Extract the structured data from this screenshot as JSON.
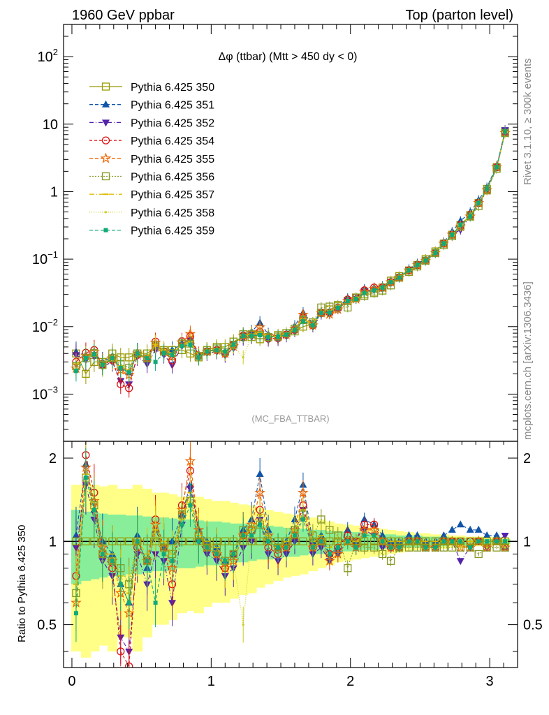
{
  "header": {
    "left": "1960 GeV ppbar",
    "right": "Top (parton level)"
  },
  "side_labels": {
    "rivet": "Rivet 3.1.10, ≥ 300k events",
    "mcplots": "mcplots.cern.ch [arXiv:1306.3436]"
  },
  "plot_title": "Δφ (ttbar) (Mtt > 450 dy < 0)",
  "watermark": "(MC_FBA_TTBAR)",
  "ratio_ylabel": "Ratio to Pythia 6.425 350",
  "legend": [
    "Pythia 6.425 350",
    "Pythia 6.425 351",
    "Pythia 6.425 352",
    "Pythia 6.425 354",
    "Pythia 6.425 355",
    "Pythia 6.425 356",
    "Pythia 6.425 357",
    "Pythia 6.425 358",
    "Pythia 6.425 359"
  ],
  "chart_data": {
    "type": "line",
    "x": [
      0.03,
      0.1,
      0.16,
      0.22,
      0.29,
      0.35,
      0.41,
      0.47,
      0.54,
      0.6,
      0.66,
      0.72,
      0.79,
      0.85,
      0.91,
      0.97,
      1.04,
      1.1,
      1.16,
      1.23,
      1.29,
      1.35,
      1.41,
      1.48,
      1.54,
      1.6,
      1.66,
      1.73,
      1.79,
      1.85,
      1.91,
      1.98,
      2.04,
      2.1,
      2.17,
      2.23,
      2.29,
      2.35,
      2.42,
      2.48,
      2.54,
      2.61,
      2.67,
      2.73,
      2.79,
      2.86,
      2.92,
      2.98,
      3.05,
      3.11
    ],
    "reference": [
      0.004,
      0.002,
      0.003,
      0.003,
      0.004,
      0.0035,
      0.0035,
      0.004,
      0.004,
      0.005,
      0.0045,
      0.0045,
      0.0045,
      0.004,
      0.0035,
      0.0045,
      0.005,
      0.005,
      0.006,
      0.007,
      0.007,
      0.0065,
      0.007,
      0.0075,
      0.008,
      0.0085,
      0.01,
      0.011,
      0.016,
      0.018,
      0.02,
      0.024,
      0.027,
      0.03,
      0.033,
      0.038,
      0.048,
      0.056,
      0.068,
      0.082,
      0.1,
      0.13,
      0.17,
      0.23,
      0.32,
      0.45,
      0.68,
      1.1,
      2.3,
      7.8
    ],
    "series": [
      {
        "name": "Pythia 6.425 350",
        "color": "#999900",
        "marker": "square-open",
        "ratio": [
          1,
          1,
          1,
          1,
          1,
          1,
          1,
          1,
          1,
          1,
          1,
          1,
          1,
          1,
          1,
          1,
          1,
          1,
          1,
          1,
          1,
          1,
          1,
          1,
          1,
          1,
          1,
          1,
          1,
          1,
          1,
          1,
          1,
          1,
          1,
          1,
          1,
          1,
          1,
          1,
          1,
          1,
          1,
          1,
          1,
          1,
          1,
          1,
          1,
          1
        ]
      },
      {
        "name": "Pythia 6.425 351",
        "color": "#1155aa",
        "marker": "triangle-up",
        "ratio": [
          1.05,
          1.9,
          1.3,
          1.0,
          0.9,
          0.7,
          0.6,
          1.05,
          0.8,
          1.1,
          0.95,
          1.0,
          1.25,
          1.6,
          1.1,
          1.0,
          0.95,
          0.85,
          0.9,
          1.1,
          1.2,
          1.75,
          1.1,
          0.95,
          1.0,
          1.2,
          1.6,
          1.0,
          1.05,
          0.9,
          0.95,
          1.1,
          1.0,
          1.2,
          1.15,
          1.05,
          1.0,
          1.0,
          1.05,
          1.05,
          1.0,
          1.0,
          1.05,
          1.1,
          1.15,
          1.1,
          1.1,
          1.05,
          1.05,
          0.95
        ]
      },
      {
        "name": "Pythia 6.425 352",
        "color": "#5522aa",
        "marker": "triangle-down",
        "ratio": [
          0.95,
          1.6,
          1.2,
          0.85,
          0.75,
          0.45,
          0.4,
          0.9,
          0.7,
          0.9,
          0.85,
          0.6,
          1.15,
          1.55,
          1.0,
          0.9,
          0.85,
          0.75,
          0.8,
          0.95,
          1.0,
          1.2,
          0.9,
          0.85,
          0.9,
          1.0,
          1.3,
          0.9,
          0.95,
          0.85,
          0.9,
          1.0,
          0.95,
          1.1,
          1.05,
          0.95,
          0.95,
          0.95,
          1.0,
          1.0,
          0.95,
          0.95,
          1.0,
          1.0,
          0.85,
          0.95,
          1.0,
          0.95,
          1.0,
          1.05
        ]
      },
      {
        "name": "Pythia 6.425 354",
        "color": "#dd1111",
        "marker": "circle-open",
        "ratio": [
          0.75,
          2.05,
          1.5,
          0.9,
          0.8,
          0.4,
          0.35,
          0.95,
          0.85,
          1.2,
          0.95,
          0.7,
          1.35,
          1.8,
          1.05,
          0.95,
          0.9,
          0.8,
          0.9,
          1.05,
          1.1,
          1.3,
          0.95,
          0.9,
          0.95,
          1.05,
          1.35,
          0.95,
          1.0,
          0.9,
          0.95,
          1.05,
          1.0,
          1.15,
          1.15,
          1.0,
          0.95,
          0.95,
          1.0,
          1.0,
          0.95,
          0.95,
          1.0,
          1.0,
          1.0,
          1.0,
          1.0,
          0.95,
          1.0,
          0.95
        ]
      },
      {
        "name": "Pythia 6.425 355",
        "color": "#ee6600",
        "marker": "star-open",
        "ratio": [
          0.6,
          1.85,
          1.4,
          0.95,
          0.85,
          0.65,
          0.55,
          1.0,
          0.85,
          1.15,
          0.95,
          0.8,
          1.3,
          1.95,
          1.1,
          0.95,
          0.9,
          0.8,
          0.85,
          1.05,
          1.15,
          1.5,
          1.05,
          0.95,
          0.95,
          1.1,
          1.5,
          0.95,
          1.0,
          0.85,
          0.9,
          1.0,
          0.95,
          1.1,
          1.1,
          1.0,
          0.95,
          0.95,
          1.0,
          1.0,
          0.95,
          0.95,
          1.0,
          1.0,
          0.95,
          0.95,
          1.0,
          0.95,
          1.0,
          0.95
        ]
      },
      {
        "name": "Pythia 6.425 356",
        "color": "#889922",
        "marker": "square-open",
        "ratio": [
          0.65,
          1.7,
          1.35,
          0.9,
          0.85,
          0.8,
          0.7,
          1.0,
          0.85,
          1.05,
          0.95,
          0.9,
          1.25,
          1.4,
          1.05,
          0.95,
          0.95,
          0.85,
          0.9,
          1.1,
          1.1,
          1.15,
          1.0,
          0.95,
          1.0,
          1.1,
          1.25,
          1.05,
          1.2,
          1.1,
          1.05,
          0.8,
          1.0,
          0.95,
          0.95,
          0.9,
          0.85,
          0.95,
          0.95,
          0.95,
          0.95,
          0.95,
          0.95,
          0.95,
          0.95,
          0.95,
          0.9,
          0.95,
          0.95,
          0.95
        ]
      },
      {
        "name": "Pythia 6.425 357",
        "color": "#ddbb00",
        "marker": "dash",
        "ratio": [
          0.7,
          1.75,
          1.3,
          0.9,
          0.9,
          0.75,
          0.65,
          1.0,
          0.9,
          1.1,
          1.0,
          0.9,
          1.2,
          1.5,
          1.05,
          1.0,
          0.95,
          0.85,
          0.9,
          1.05,
          1.1,
          1.25,
          1.05,
          0.95,
          1.0,
          1.1,
          1.3,
          1.0,
          1.05,
          0.95,
          1.0,
          1.0,
          1.0,
          1.05,
          1.05,
          1.0,
          1.0,
          1.0,
          1.0,
          1.0,
          1.0,
          1.0,
          1.0,
          1.0,
          1.0,
          1.0,
          1.0,
          1.0,
          1.0,
          1.0
        ]
      },
      {
        "name": "Pythia 6.425 358",
        "color": "#cccc22",
        "marker": "dot",
        "ratio": [
          0.6,
          1.8,
          1.25,
          0.85,
          0.8,
          0.7,
          0.6,
          0.95,
          0.85,
          1.05,
          0.9,
          0.85,
          1.2,
          1.45,
          1.0,
          0.95,
          0.9,
          0.8,
          0.85,
          0.5,
          1.05,
          1.2,
          1.0,
          0.95,
          0.95,
          1.05,
          1.25,
          0.95,
          1.0,
          0.9,
          0.95,
          1.0,
          0.95,
          1.05,
          1.05,
          1.0,
          0.95,
          0.95,
          1.0,
          1.0,
          0.95,
          0.95,
          1.0,
          1.0,
          0.95,
          0.95,
          1.0,
          0.95,
          1.0,
          0.95
        ]
      },
      {
        "name": "Pythia 6.425 359",
        "color": "#11aa77",
        "marker": "square-filled",
        "ratio": [
          0.55,
          1.7,
          1.3,
          0.9,
          0.85,
          0.7,
          0.6,
          1.0,
          0.85,
          0.6,
          0.9,
          0.85,
          1.15,
          1.35,
          1.0,
          0.95,
          0.9,
          0.85,
          0.9,
          1.05,
          1.05,
          1.15,
          1.0,
          0.95,
          0.95,
          1.05,
          1.2,
          0.95,
          1.0,
          0.9,
          0.95,
          1.0,
          0.95,
          1.05,
          1.05,
          1.0,
          0.95,
          0.95,
          1.0,
          1.0,
          0.95,
          0.95,
          1.0,
          1.0,
          1.0,
          0.95,
          1.0,
          1.0,
          1.0,
          1.0
        ]
      }
    ],
    "band_inner": [
      0.3,
      0.28,
      0.27,
      0.26,
      0.25,
      0.25,
      0.24,
      0.24,
      0.23,
      0.22,
      0.22,
      0.21,
      0.2,
      0.2,
      0.19,
      0.18,
      0.18,
      0.17,
      0.16,
      0.16,
      0.15,
      0.14,
      0.14,
      0.13,
      0.12,
      0.12,
      0.11,
      0.1,
      0.1,
      0.09,
      0.09,
      0.08,
      0.08,
      0.07,
      0.07,
      0.06,
      0.06,
      0.05,
      0.05,
      0.05,
      0.04,
      0.04,
      0.04,
      0.03,
      0.03,
      0.03,
      0.03,
      0.02,
      0.02,
      0.02
    ],
    "band_outer": [
      0.6,
      0.62,
      0.6,
      0.58,
      0.6,
      0.55,
      0.55,
      0.6,
      0.55,
      0.5,
      0.5,
      0.48,
      0.45,
      0.44,
      0.45,
      0.42,
      0.4,
      0.4,
      0.38,
      0.36,
      0.35,
      0.32,
      0.3,
      0.28,
      0.26,
      0.25,
      0.24,
      0.22,
      0.2,
      0.18,
      0.16,
      0.15,
      0.14,
      0.13,
      0.12,
      0.11,
      0.1,
      0.09,
      0.08,
      0.07,
      0.07,
      0.06,
      0.06,
      0.05,
      0.05,
      0.04,
      0.04,
      0.04,
      0.03,
      0.03
    ],
    "main_axis": {
      "scale": "log",
      "ylim": [
        0.0002,
        300
      ],
      "tick_labels": [
        "10^-3",
        "10^-2",
        "10^-1",
        "1",
        "10",
        "10^2"
      ]
    },
    "ratio_axis": {
      "scale": "log",
      "ylim": [
        0.35,
        2.3
      ],
      "tick_labels": [
        "0.5",
        "1",
        "2"
      ]
    },
    "x_axis": {
      "xlim": [
        -0.06,
        3.2
      ],
      "tick_labels": [
        "0",
        "1",
        "2",
        "3"
      ]
    }
  }
}
